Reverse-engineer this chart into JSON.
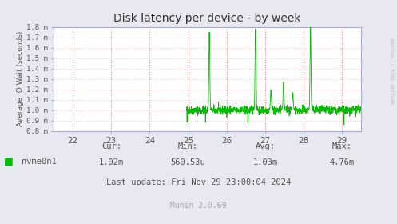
{
  "title": "Disk latency per device - by week",
  "ylabel": "Average IO Wait (seconds)",
  "xlabel_ticks": [
    22,
    23,
    24,
    25,
    26,
    27,
    28,
    29
  ],
  "xlim": [
    21.5,
    29.5
  ],
  "ylim": [
    8e-07,
    1.8e-06
  ],
  "ytick_values": [
    8e-07,
    9e-07,
    1e-06,
    1.1e-06,
    1.2e-06,
    1.3e-06,
    1.4e-06,
    1.5e-06,
    1.6e-06,
    1.7e-06,
    1.8e-06
  ],
  "ytick_labels": [
    "0.8 m",
    "0.9 m",
    "1.0 m",
    "1.1 m",
    "1.2 m",
    "1.3 m",
    "1.4 m",
    "1.5 m",
    "1.6 m",
    "1.7 m",
    "1.8 m"
  ],
  "vgrid_color": "#ff8080",
  "hgrid_color": "#ffcccc",
  "line_color": "#00bb00",
  "background_color": "#e8e8f0",
  "plot_bg_color": "#ffffff",
  "title_color": "#333333",
  "legend_label": "nvme0n1",
  "stats_cur": "1.02m",
  "stats_min": "560.53u",
  "stats_avg": "1.03m",
  "stats_max": "4.76m",
  "last_update": "Last update: Fri Nov 29 23:00:04 2024",
  "munin_version": "Munin 2.0.69",
  "rrdtool_text": "RRDTOOL / TOBI OETIKER",
  "spine_color": "#aaaacc",
  "text_color": "#555555"
}
